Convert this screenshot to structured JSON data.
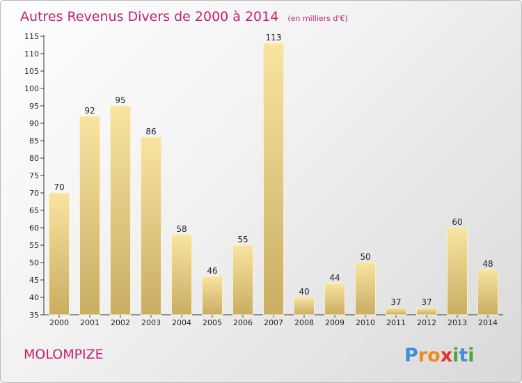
{
  "chart_data": {
    "type": "bar",
    "title": "Autres Revenus Divers de 2000 à 2014",
    "unit": "(en milliers d'€)",
    "categories": [
      "2000",
      "2001",
      "2002",
      "2003",
      "2004",
      "2005",
      "2006",
      "2007",
      "2008",
      "2009",
      "2010",
      "2011",
      "2012",
      "2013",
      "2014"
    ],
    "values": [
      70,
      92,
      95,
      86,
      58,
      46,
      55,
      113,
      40,
      44,
      50,
      37,
      37,
      60,
      48
    ],
    "ylim": [
      35,
      115
    ],
    "yticks": [
      "35",
      "40",
      "45",
      "50",
      "55",
      "60",
      "65",
      "70",
      "75",
      "80",
      "85",
      "90",
      "95",
      "100",
      "105",
      "110",
      "115"
    ],
    "grid": false,
    "bar_color_top": "#f8e4a0",
    "bar_color_bottom": "#c9ad63"
  },
  "place": "MOLOMPIZE",
  "brand": {
    "letters": [
      "P",
      "r",
      "o",
      "x",
      "i",
      "t",
      "i"
    ],
    "colors": [
      "#3d8fd6",
      "#f08a1c",
      "#f08a1c",
      "#e5332a",
      "#4aa63c",
      "#3d8fd6",
      "#4aa63c"
    ]
  },
  "colors": {
    "title": "#c71f6b",
    "axis": "#333333"
  }
}
